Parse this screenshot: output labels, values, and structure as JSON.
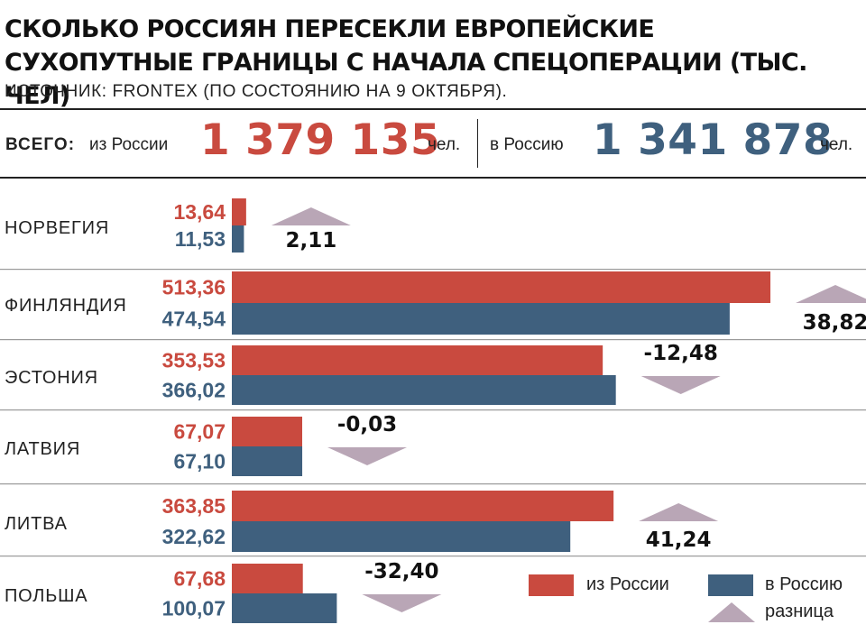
{
  "header": {
    "title_line1": "СКОЛЬКО РОССИЯН ПЕРЕСЕКЛИ ЕВРОПЕЙСКИЕ",
    "title_line2": "СУХОПУТНЫЕ ГРАНИЦЫ С НАЧАЛА СПЕЦОПЕРАЦИИ (ТЫС. ЧЕЛ)",
    "source": "ИСТОЧНИК: FRONTEX (ПО СОСТОЯНИЮ НА 9 ОКТЯБРЯ)."
  },
  "totals": {
    "label": "ВСЕГО:",
    "from_label": "из России",
    "from_value": "1 379 135",
    "from_unit": "чел.",
    "to_label": "в Россию",
    "to_value": "1 341 878",
    "to_unit": "чел."
  },
  "legend": {
    "from": "из России",
    "to": "в Россию",
    "diff": "разница"
  },
  "colors": {
    "from": "#c94a3f",
    "to": "#3f607e",
    "diff": "#b9a6b6",
    "text_from": "#c94a3f",
    "text_to": "#3f607e"
  },
  "chart_data": {
    "type": "bar",
    "orientation": "horizontal",
    "categories": [
      "НОРВЕГИЯ",
      "ФИНЛЯНДИЯ",
      "ЭСТОНИЯ",
      "ЛАТВИЯ",
      "ЛИТВА",
      "ПОЛЬША"
    ],
    "series": [
      {
        "name": "из России",
        "values": [
          13.64,
          513.36,
          353.53,
          67.07,
          363.85,
          67.68
        ],
        "labels": [
          "13,64",
          "513,36",
          "353,53",
          "67,07",
          "363,85",
          "67,68"
        ]
      },
      {
        "name": "в Россию",
        "values": [
          11.53,
          474.54,
          366.02,
          67.1,
          322.62,
          100.07
        ],
        "labels": [
          "11,53",
          "474,54",
          "366,02",
          "67,10",
          "322,62",
          "100,07"
        ]
      }
    ],
    "difference": {
      "name": "разница",
      "values": [
        2.11,
        38.82,
        -12.48,
        -0.03,
        41.24,
        -32.4
      ],
      "labels": [
        "2,11",
        "38,82",
        "-12,48",
        "-0,03",
        "41,24",
        "-32,40"
      ]
    }
  }
}
